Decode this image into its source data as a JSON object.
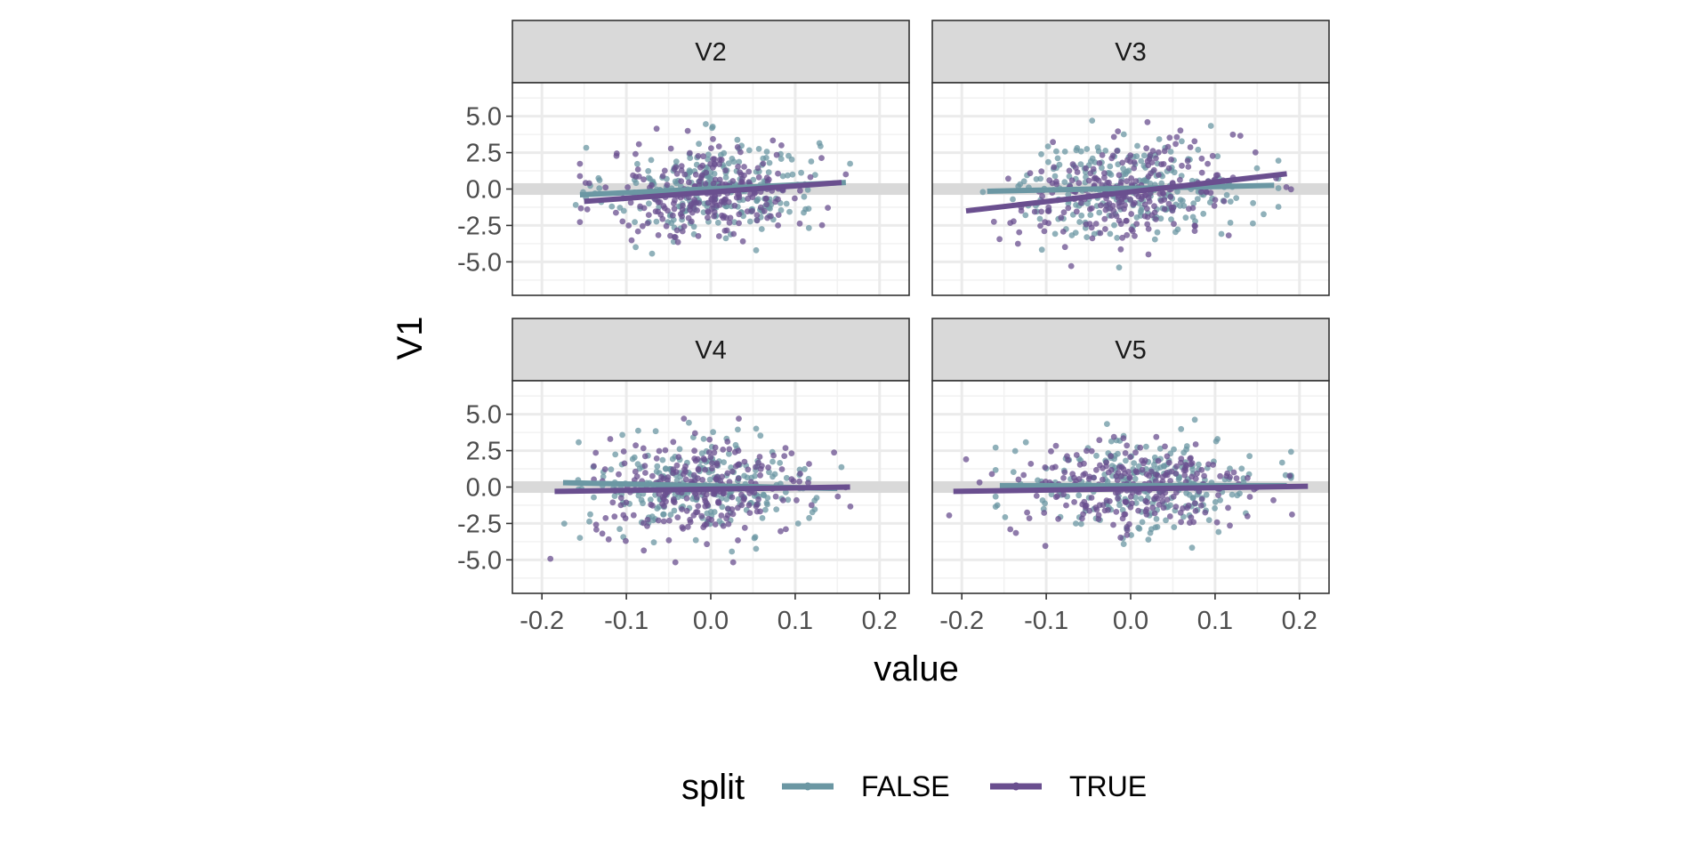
{
  "chart_data": {
    "type": "scatter",
    "facet_layout": "2x2",
    "xlabel": "value",
    "ylabel": "V1",
    "xlim": [
      -0.235,
      0.235
    ],
    "ylim": [
      -7.3,
      7.3
    ],
    "x_ticks": [
      -0.2,
      -0.1,
      0.0,
      0.1,
      0.2
    ],
    "x_tick_labels": [
      "-0.2",
      "-0.1",
      "0.0",
      "0.1",
      "0.2"
    ],
    "y_ticks": [
      -5.0,
      -2.5,
      0.0,
      2.5,
      5.0
    ],
    "y_tick_labels": [
      "-5.0",
      "-2.5",
      "0.0",
      "2.5",
      "5.0"
    ],
    "y_axis_drawn_to": 7.3,
    "grid": true,
    "highlight_band_y": [
      -0.4,
      0.4
    ],
    "legend": {
      "title": "split",
      "position": "bottom",
      "entries": [
        {
          "label": "FALSE",
          "color": "#6b97a3"
        },
        {
          "label": "TRUE",
          "color": "#6a4f8f"
        }
      ]
    },
    "panels": [
      {
        "strip": "V2",
        "points_per_group": 250,
        "x_sd": 0.062,
        "y_sd": 1.65,
        "series": [
          {
            "name": "FALSE",
            "color": "#6b97a3",
            "x_range": [
              -0.155,
              0.16
            ],
            "fit_line": [
              [
                -0.155,
                -0.4
              ],
              [
                0.16,
                0.45
              ]
            ]
          },
          {
            "name": "TRUE",
            "color": "#6a4f8f",
            "x_range": [
              -0.15,
              0.155
            ],
            "fit_line": [
              [
                -0.15,
                -0.85
              ],
              [
                0.155,
                0.45
              ]
            ]
          }
        ]
      },
      {
        "strip": "V3",
        "points_per_group": 250,
        "x_sd": 0.068,
        "y_sd": 1.65,
        "series": [
          {
            "name": "FALSE",
            "color": "#6b97a3",
            "x_range": [
              -0.17,
              0.17
            ],
            "fit_line": [
              [
                -0.17,
                -0.15
              ],
              [
                0.17,
                0.25
              ]
            ]
          },
          {
            "name": "TRUE",
            "color": "#6a4f8f",
            "x_range": [
              -0.195,
              0.185
            ],
            "fit_line": [
              [
                -0.195,
                -1.5
              ],
              [
                0.185,
                1.05
              ]
            ]
          }
        ]
      },
      {
        "strip": "V4",
        "points_per_group": 250,
        "x_sd": 0.065,
        "y_sd": 1.65,
        "series": [
          {
            "name": "FALSE",
            "color": "#6b97a3",
            "x_range": [
              -0.175,
              0.15
            ],
            "fit_line": [
              [
                -0.175,
                0.3
              ],
              [
                0.15,
                -0.1
              ]
            ]
          },
          {
            "name": "TRUE",
            "color": "#6a4f8f",
            "x_range": [
              -0.185,
              0.165
            ],
            "fit_line": [
              [
                -0.185,
                -0.3
              ],
              [
                0.165,
                0.0
              ]
            ]
          }
        ]
      },
      {
        "strip": "V5",
        "points_per_group": 250,
        "x_sd": 0.072,
        "y_sd": 1.65,
        "series": [
          {
            "name": "FALSE",
            "color": "#6b97a3",
            "x_range": [
              -0.155,
              0.185
            ],
            "fit_line": [
              [
                -0.155,
                0.1
              ],
              [
                0.185,
                0.1
              ]
            ]
          },
          {
            "name": "TRUE",
            "color": "#6a4f8f",
            "x_range": [
              -0.21,
              0.21
            ],
            "fit_line": [
              [
                -0.21,
                -0.3
              ],
              [
                0.21,
                0.05
              ]
            ]
          }
        ]
      }
    ]
  }
}
